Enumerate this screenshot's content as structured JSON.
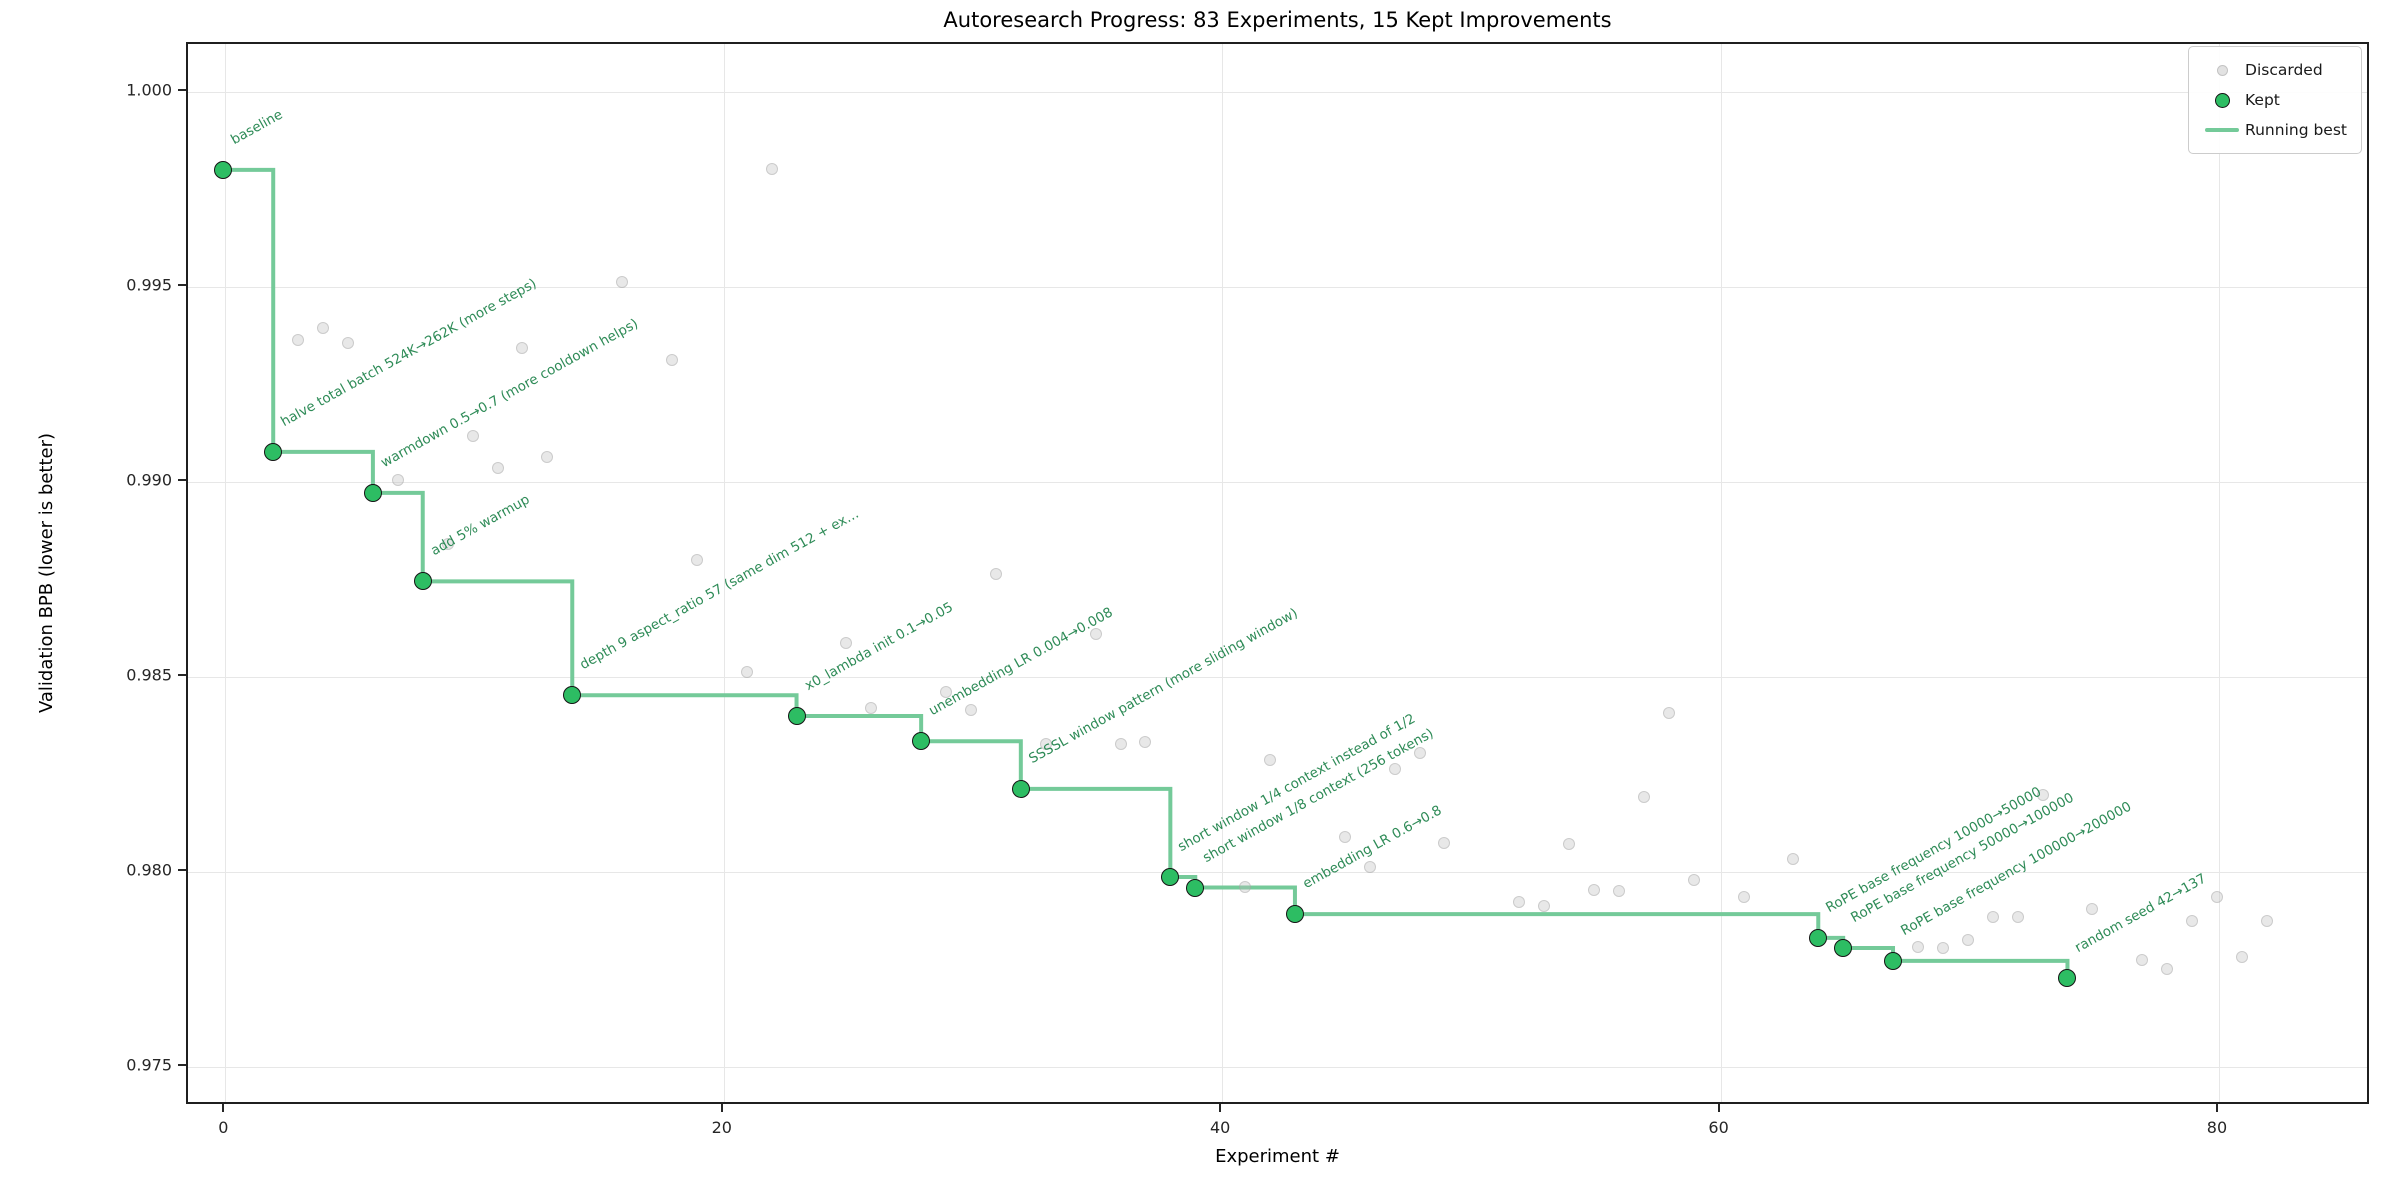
{
  "title": "Autoresearch Progress: 83 Experiments, 15 Kept Improvements",
  "legend": {
    "discarded_label": "Discarded",
    "kept_label": "Kept",
    "running_best_label": "Running best"
  },
  "colors": {
    "kept_fill": "#2dbd63",
    "kept_edge": "#141414",
    "running_best_line": "#74ca99",
    "annotation_text": "#2e8b57",
    "discarded_fill": "rgba(190,190,190,0.35)",
    "grid": "#e7e7e7",
    "spine": "#1f1f1f"
  },
  "chart_data": {
    "type": "scatter",
    "title": "Autoresearch Progress: 83 Experiments, 15 Kept Improvements",
    "xlabel": "Experiment #",
    "ylabel": "Validation BPB (lower is better)",
    "xlim": [
      -1.5,
      86.1
    ],
    "ylim": [
      0.974,
      1.00123
    ],
    "x_ticks": [
      0,
      20,
      40,
      60,
      80
    ],
    "y_ticks": [
      1.0,
      0.995,
      0.99,
      0.985,
      0.98,
      0.975
    ],
    "y_tick_labels": [
      "1.000",
      "0.995",
      "0.990",
      "0.985",
      "0.980",
      "0.975"
    ],
    "grid": true,
    "legend_position": "upper right",
    "annotation_rotation_deg": -29,
    "series": [
      {
        "name": "Kept",
        "points": [
          {
            "x": 0,
            "y": 0.99795,
            "label": "baseline"
          },
          {
            "x": 2,
            "y": 0.99072,
            "label": "halve total batch 524K→262K (more steps)"
          },
          {
            "x": 6,
            "y": 0.98967,
            "label": "warmdown 0.5→0.7 (more cooldown helps)"
          },
          {
            "x": 8,
            "y": 0.9874,
            "label": "add 5% warmup"
          },
          {
            "x": 14,
            "y": 0.98448,
            "label": "depth 9 aspect_ratio 57 (same dim 512 + ex…"
          },
          {
            "x": 23,
            "y": 0.98395,
            "label": "x0_lambda init 0.1→0.05"
          },
          {
            "x": 28,
            "y": 0.9833,
            "label": "unembedding LR 0.004→0.008"
          },
          {
            "x": 32,
            "y": 0.98208,
            "label": "SSSSL window pattern (more sliding window)"
          },
          {
            "x": 38,
            "y": 0.97982,
            "label": "short window 1/4 context instead of 1/2"
          },
          {
            "x": 39,
            "y": 0.97955,
            "label": "short window 1/8 context (256 tokens)"
          },
          {
            "x": 43,
            "y": 0.97887,
            "label": "embedding LR 0.6→0.8"
          },
          {
            "x": 64,
            "y": 0.97826,
            "label": "RoPE base frequency 10000→50000"
          },
          {
            "x": 65,
            "y": 0.978,
            "label": "RoPE base frequency 50000→100000"
          },
          {
            "x": 67,
            "y": 0.97767,
            "label": "RoPE base frequency 100000→200000"
          },
          {
            "x": 74,
            "y": 0.97723,
            "label": "random seed 42→137"
          }
        ]
      },
      {
        "name": "Discarded",
        "points": [
          {
            "x": 3,
            "y": 0.99359
          },
          {
            "x": 4,
            "y": 0.9939
          },
          {
            "x": 5,
            "y": 0.99351
          },
          {
            "x": 7,
            "y": 0.99
          },
          {
            "x": 9,
            "y": 0.98836
          },
          {
            "x": 10,
            "y": 0.99113
          },
          {
            "x": 11,
            "y": 0.99031
          },
          {
            "x": 12,
            "y": 0.99338
          },
          {
            "x": 13,
            "y": 0.99059
          },
          {
            "x": 16,
            "y": 0.99508
          },
          {
            "x": 18,
            "y": 0.99308
          },
          {
            "x": 19,
            "y": 0.98795
          },
          {
            "x": 21,
            "y": 0.98508
          },
          {
            "x": 22,
            "y": 0.99797
          },
          {
            "x": 25,
            "y": 0.98582
          },
          {
            "x": 26,
            "y": 0.98415
          },
          {
            "x": 29,
            "y": 0.98456
          },
          {
            "x": 30,
            "y": 0.9841
          },
          {
            "x": 31,
            "y": 0.98759
          },
          {
            "x": 33,
            "y": 0.98323
          },
          {
            "x": 35,
            "y": 0.98605
          },
          {
            "x": 36,
            "y": 0.98323
          },
          {
            "x": 37,
            "y": 0.98328
          },
          {
            "x": 41,
            "y": 0.97956
          },
          {
            "x": 42,
            "y": 0.98282
          },
          {
            "x": 45,
            "y": 0.98085
          },
          {
            "x": 46,
            "y": 0.98008
          },
          {
            "x": 47,
            "y": 0.98259
          },
          {
            "x": 48,
            "y": 0.983
          },
          {
            "x": 49,
            "y": 0.98069
          },
          {
            "x": 52,
            "y": 0.97918
          },
          {
            "x": 53,
            "y": 0.97908
          },
          {
            "x": 54,
            "y": 0.98067
          },
          {
            "x": 55,
            "y": 0.97949
          },
          {
            "x": 56,
            "y": 0.97946
          },
          {
            "x": 57,
            "y": 0.98187
          },
          {
            "x": 58,
            "y": 0.98403
          },
          {
            "x": 59,
            "y": 0.97974
          },
          {
            "x": 61,
            "y": 0.97931
          },
          {
            "x": 63,
            "y": 0.98028
          },
          {
            "x": 68,
            "y": 0.97803
          },
          {
            "x": 69,
            "y": 0.978
          },
          {
            "x": 70,
            "y": 0.97821
          },
          {
            "x": 71,
            "y": 0.97879
          },
          {
            "x": 72,
            "y": 0.97879
          },
          {
            "x": 73,
            "y": 0.98192
          },
          {
            "x": 75,
            "y": 0.979
          },
          {
            "x": 77,
            "y": 0.97769
          },
          {
            "x": 78,
            "y": 0.97746
          },
          {
            "x": 79,
            "y": 0.97869
          },
          {
            "x": 80,
            "y": 0.97931
          },
          {
            "x": 81,
            "y": 0.97777
          },
          {
            "x": 82,
            "y": 0.9787
          }
        ]
      }
    ],
    "running_best": {
      "style": "step-post",
      "points_from": "Kept"
    }
  }
}
